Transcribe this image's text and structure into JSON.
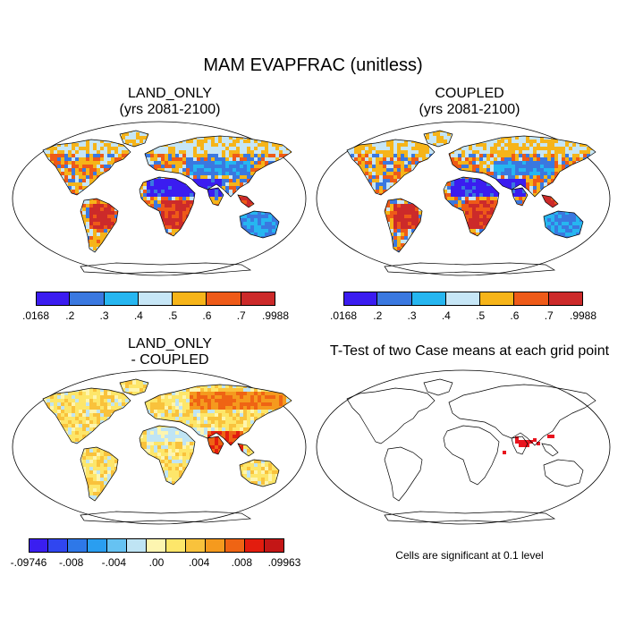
{
  "figure": {
    "title": "MAM EVAPFRAC (unitless)"
  },
  "panels": [
    {
      "id": "land_only",
      "title_line1": "LAND_ONLY",
      "title_line2": "(yrs 2081-2100)"
    },
    {
      "id": "coupled",
      "title_line1": "COUPLED",
      "title_line2": "(yrs 2081-2100)"
    },
    {
      "id": "difference",
      "title_line1": "LAND_ONLY",
      "title_line2": "- COUPLED"
    },
    {
      "id": "ttest",
      "title_line1": "T-Test of two Case means at each grid point",
      "title_line2": ""
    }
  ],
  "colorbars": {
    "absolute": {
      "colors": [
        "#3b1cf0",
        "#3a78e0",
        "#26b6f0",
        "#c6e6f6",
        "#f6b419",
        "#ee5a18",
        "#cc2a2a"
      ],
      "ticks": [
        ".0168",
        ".2",
        ".3",
        ".4",
        ".5",
        ".6",
        ".7",
        ".9988"
      ]
    },
    "difference": {
      "colors": [
        "#3a1ef0",
        "#3046f0",
        "#2e78e8",
        "#2a9ef0",
        "#66c2f2",
        "#bfe4f4",
        "#fdf5b0",
        "#fde66a",
        "#f9c23c",
        "#f59a1e",
        "#ef6414",
        "#e31c0e",
        "#c41616"
      ],
      "ticks": [
        "-.09746",
        "-.008",
        "-.004",
        ".00",
        ".004",
        ".008",
        ".09963"
      ]
    }
  },
  "significance_note": "Cells are significant at 0.1 level",
  "map_colors": {
    "land_outline": "#000000",
    "significant_cells": "#e8141e",
    "ocean": "#ffffff"
  }
}
